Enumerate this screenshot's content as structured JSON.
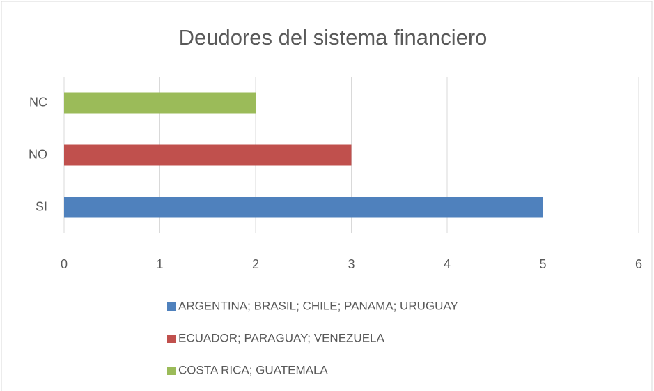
{
  "chart_data": {
    "type": "bar",
    "orientation": "horizontal",
    "title": "Deudores del sistema financiero",
    "categories": [
      "SI",
      "NO",
      "NC"
    ],
    "series": [
      {
        "name": "ARGENTINA; BRASIL; CHILE; PANAMA; URUGUAY",
        "color": "#4f81bd",
        "values": [
          5,
          null,
          null
        ]
      },
      {
        "name": "ECUADOR; PARAGUAY; VENEZUELA",
        "color": "#c0504d",
        "values": [
          null,
          3,
          null
        ]
      },
      {
        "name": "COSTA RICA; GUATEMALA",
        "color": "#9bbb59",
        "values": [
          null,
          null,
          2
        ]
      }
    ],
    "xlim": [
      0,
      6
    ],
    "xticks": [
      0,
      1,
      2,
      3,
      4,
      5,
      6
    ],
    "grid": true,
    "legend": "bottom"
  }
}
